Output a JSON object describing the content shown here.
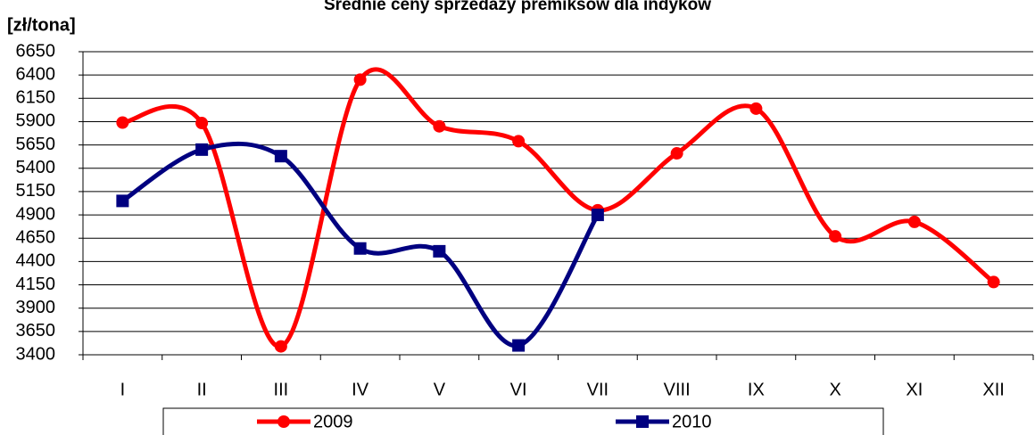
{
  "chart_data": {
    "type": "line",
    "title": "Średnie ceny sprzedaży premiksów dla indyków",
    "y_label": "[zł/tona]",
    "categories": [
      "I",
      "II",
      "III",
      "IV",
      "V",
      "VI",
      "VII",
      "VIII",
      "IX",
      "X",
      "XI",
      "XII"
    ],
    "series": [
      {
        "name": "2009",
        "color": "#ff0000",
        "marker": "circle",
        "values": [
          5890,
          5885,
          3490,
          6350,
          5850,
          5690,
          4950,
          5560,
          6040,
          4670,
          4825,
          4180
        ]
      },
      {
        "name": "2010",
        "color": "#000080",
        "marker": "square",
        "values": [
          5050,
          5600,
          5530,
          4540,
          4510,
          3500,
          4900,
          null,
          null,
          null,
          null,
          null
        ]
      }
    ],
    "ylim": [
      3400,
      6650
    ],
    "yticks": [
      3400,
      3650,
      3900,
      4150,
      4400,
      4650,
      4900,
      5150,
      5400,
      5650,
      5900,
      6150,
      6400,
      6650
    ],
    "grid": true,
    "smooth": true,
    "legend": "bottom"
  }
}
